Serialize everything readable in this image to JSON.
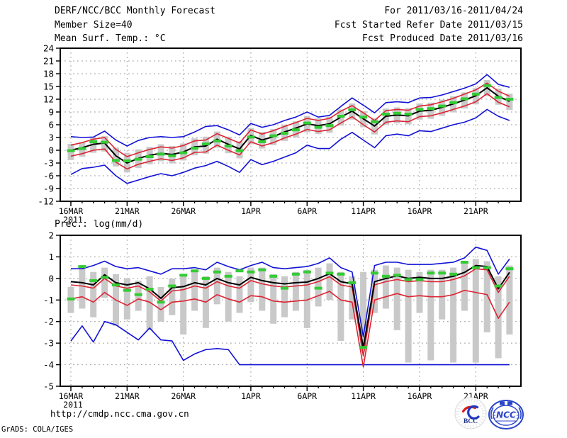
{
  "header": {
    "title": "DERF/NCC/BCC Monthly Forecast",
    "member_size": "Member Size=40",
    "for_range": "For 2011/03/16-2011/04/24",
    "fcst_started": "Fcst Started Refer Date 2011/03/15",
    "fcst_produced": "Fcst Produced Date 2011/03/16"
  },
  "footer": {
    "url": "http://cmdp.ncc.cma.gov.cn",
    "grads_credit": "GrADS: COLA/IGES",
    "logos": {
      "bcc": "BCC",
      "ncc": "NCC"
    }
  },
  "colors": {
    "background": "#ffffff",
    "frame": "#000000",
    "grid": "#999999",
    "ensemble_envelope": "#1212d6",
    "ensemble_quartile": "#dd2433",
    "ensemble_mean": "#000000",
    "observation_marker": "#33cc33",
    "spread_bar": "#c9c9c9"
  },
  "chart_data": [
    {
      "type": "line",
      "name": "temperature",
      "title": "Mean Surf. Temp.: °C",
      "ylim": [
        -12,
        24
      ],
      "yticks": [
        24,
        21,
        18,
        15,
        12,
        9,
        6,
        3,
        0,
        -3,
        -6,
        -9,
        -12
      ],
      "n_days": 40,
      "x_tick_days": [
        0,
        5,
        10,
        16,
        21,
        26,
        31,
        36
      ],
      "x_tick_labels": [
        "16MAR",
        "21MAR",
        "26MAR",
        "1APR",
        "6APR",
        "11APR",
        "16APR",
        "21APR"
      ],
      "x_year_label": "2011",
      "grid": true,
      "series": [
        {
          "name": "ensemble-max",
          "color": "#1212d6",
          "width": 1.6,
          "values": [
            3.2,
            3.0,
            3.1,
            4.5,
            2.4,
            1.0,
            2.3,
            3.0,
            3.2,
            3.0,
            3.2,
            4.3,
            5.6,
            5.8,
            4.8,
            3.6,
            6.3,
            5.4,
            6.0,
            7.0,
            7.8,
            9.0,
            7.8,
            8.2,
            10.3,
            12.3,
            10.6,
            8.8,
            11.2,
            11.4,
            11.2,
            12.3,
            12.4,
            13.0,
            13.8,
            14.6,
            15.6,
            17.8,
            15.5,
            14.8
          ]
        },
        {
          "name": "ensemble-min",
          "color": "#1212d6",
          "width": 1.6,
          "values": [
            -5.7,
            -4.3,
            -4.0,
            -3.5,
            -6.0,
            -7.8,
            -7.0,
            -6.2,
            -5.5,
            -6.0,
            -5.2,
            -4.2,
            -3.6,
            -2.6,
            -3.8,
            -5.2,
            -2.2,
            -3.4,
            -2.6,
            -1.6,
            -0.6,
            1.2,
            0.4,
            0.4,
            2.6,
            4.2,
            2.4,
            0.6,
            3.4,
            3.8,
            3.4,
            4.6,
            4.4,
            5.2,
            6.0,
            6.6,
            7.6,
            9.6,
            8.0,
            7.0
          ]
        },
        {
          "name": "upper-quartile",
          "color": "#dd2433",
          "width": 1.6,
          "values": [
            1.2,
            1.8,
            2.6,
            3.0,
            0.2,
            -1.5,
            -0.6,
            0.2,
            0.8,
            0.5,
            1.1,
            2.2,
            2.4,
            3.9,
            2.8,
            1.7,
            4.8,
            3.8,
            4.6,
            5.6,
            6.5,
            7.5,
            7.0,
            7.5,
            9.2,
            10.5,
            8.8,
            7.0,
            9.3,
            9.6,
            9.4,
            10.4,
            10.7,
            11.4,
            12.2,
            13.2,
            14.2,
            15.8,
            13.9,
            12.7
          ]
        },
        {
          "name": "lower-quartile",
          "color": "#dd2433",
          "width": 1.6,
          "values": [
            -1.4,
            -0.8,
            0.0,
            0.3,
            -2.8,
            -4.4,
            -3.3,
            -2.6,
            -2.0,
            -2.4,
            -1.8,
            -0.5,
            -0.4,
            1.2,
            0.0,
            -1.1,
            2.0,
            1.0,
            1.8,
            2.9,
            3.8,
            4.9,
            4.4,
            4.8,
            6.4,
            7.9,
            6.0,
            4.3,
            6.6,
            6.9,
            6.7,
            7.9,
            8.1,
            8.8,
            9.6,
            10.4,
            11.4,
            13.3,
            11.3,
            10.2
          ]
        },
        {
          "name": "ensemble-mean",
          "color": "#000000",
          "width": 2,
          "values": [
            0.0,
            0.6,
            1.4,
            1.7,
            -1.3,
            -3.0,
            -1.9,
            -1.2,
            -0.7,
            -1.0,
            -0.4,
            0.8,
            1.0,
            2.6,
            1.4,
            0.3,
            3.5,
            2.4,
            3.2,
            4.3,
            5.2,
            6.2,
            5.8,
            6.2,
            7.8,
            9.2,
            7.4,
            5.7,
            8.0,
            8.3,
            8.1,
            9.2,
            9.4,
            10.1,
            10.9,
            11.8,
            12.8,
            14.7,
            12.7,
            11.5
          ]
        }
      ],
      "markers": {
        "name": "observation",
        "color": "#33cc33",
        "values": [
          -0.1,
          0.4,
          2.0,
          1.9,
          -2.4,
          -2.5,
          -2.1,
          -1.5,
          -0.9,
          -1.3,
          -0.6,
          0.5,
          1.5,
          2.2,
          1.0,
          -0.1,
          3.1,
          2.0,
          3.4,
          4.0,
          4.8,
          6.4,
          5.4,
          5.8,
          8.0,
          9.5,
          7.8,
          6.7,
          8.5,
          8.7,
          8.5,
          9.6,
          9.8,
          10.4,
          11.2,
          12.1,
          13.2,
          15.2,
          12.4,
          12.0
        ]
      },
      "bars": {
        "name": "ensemble-spread",
        "color": "#c9c9c9",
        "high": [
          1.5,
          1.8,
          3.0,
          3.3,
          0.6,
          -0.6,
          0.2,
          0.8,
          1.4,
          1.0,
          1.6,
          2.8,
          3.2,
          4.4,
          3.2,
          2.1,
          5.2,
          4.3,
          5.0,
          6.0,
          6.8,
          8.0,
          7.5,
          7.9,
          9.6,
          11.0,
          9.2,
          7.5,
          9.8,
          10.1,
          9.9,
          11.0,
          11.2,
          11.9,
          12.7,
          13.6,
          14.6,
          16.5,
          14.5,
          13.3
        ],
        "low": [
          -2.3,
          -1.5,
          -0.6,
          -0.3,
          -3.8,
          -5.2,
          -4.2,
          -3.3,
          -2.6,
          -3.1,
          -2.4,
          -1.2,
          -0.8,
          0.6,
          -0.7,
          -1.9,
          1.4,
          0.4,
          1.2,
          2.2,
          3.0,
          4.2,
          3.8,
          4.1,
          5.8,
          7.2,
          5.4,
          3.7,
          6.0,
          6.3,
          6.1,
          7.2,
          7.4,
          8.1,
          8.9,
          9.8,
          10.8,
          12.7,
          10.7,
          9.5
        ]
      }
    },
    {
      "type": "line",
      "name": "precipitation",
      "title": "Prec.: log(mm/d)",
      "ylim": [
        -5,
        2
      ],
      "yticks": [
        2,
        1,
        0,
        -1,
        -2,
        -3,
        -4,
        -5
      ],
      "n_days": 40,
      "x_tick_days": [
        0,
        5,
        10,
        16,
        21,
        26,
        31,
        36
      ],
      "x_tick_labels": [
        "16MAR",
        "21MAR",
        "26MAR",
        "1APR",
        "6APR",
        "11APR",
        "16APR",
        "21APR"
      ],
      "x_year_label": "2011",
      "grid": true,
      "series": [
        {
          "name": "ensemble-max",
          "color": "#1212d6",
          "width": 1.6,
          "values": [
            0.45,
            0.45,
            0.6,
            0.8,
            0.55,
            0.45,
            0.5,
            0.35,
            0.2,
            0.45,
            0.45,
            0.5,
            0.4,
            0.75,
            0.55,
            0.4,
            0.6,
            0.75,
            0.5,
            0.45,
            0.5,
            0.55,
            0.7,
            0.95,
            0.5,
            0.3,
            -2.7,
            0.6,
            0.75,
            0.75,
            0.65,
            0.65,
            0.65,
            0.7,
            0.75,
            0.95,
            1.45,
            1.3,
            0.2,
            0.9
          ]
        },
        {
          "name": "ensemble-min",
          "color": "#1212d6",
          "width": 1.6,
          "values": [
            -2.9,
            -2.2,
            -2.95,
            -2.0,
            -2.15,
            -2.5,
            -2.85,
            -2.3,
            -2.85,
            -2.9,
            -3.8,
            -3.5,
            -3.3,
            -3.25,
            -3.3,
            -4.0,
            -4.0,
            -4.0,
            -4.0,
            -4.0,
            -4.0,
            -4.0,
            -4.0,
            -4.0,
            -4.0,
            -4.0,
            -4.0,
            -4.0,
            -4.0,
            -4.0,
            -4.0,
            -4.0,
            -4.0,
            -4.0,
            -4.0,
            -4.0,
            -4.0,
            -4.0,
            -4.0,
            -4.0
          ]
        },
        {
          "name": "upper-quartile",
          "color": "#dd2433",
          "width": 1.6,
          "values": [
            -0.3,
            -0.35,
            -0.45,
            0.0,
            -0.35,
            -0.45,
            -0.35,
            -0.62,
            -1.05,
            -0.58,
            -0.52,
            -0.35,
            -0.45,
            -0.15,
            -0.35,
            -0.45,
            -0.1,
            -0.25,
            -0.35,
            -0.4,
            -0.35,
            -0.3,
            -0.15,
            0.08,
            -0.3,
            -0.4,
            -3.6,
            -0.3,
            -0.15,
            -0.05,
            -0.15,
            -0.1,
            -0.15,
            -0.15,
            -0.05,
            0.12,
            0.45,
            0.4,
            -0.65,
            0.1
          ]
        },
        {
          "name": "lower-quartile",
          "color": "#dd2433",
          "width": 1.6,
          "values": [
            -0.95,
            -0.85,
            -1.1,
            -0.65,
            -1.0,
            -1.25,
            -0.95,
            -1.1,
            -1.45,
            -1.1,
            -1.05,
            -0.95,
            -1.1,
            -0.75,
            -0.95,
            -1.1,
            -0.8,
            -0.85,
            -1.05,
            -1.1,
            -1.05,
            -1.0,
            -0.8,
            -0.6,
            -1.0,
            -1.1,
            -4.1,
            -1.0,
            -0.85,
            -0.7,
            -0.85,
            -0.8,
            -0.85,
            -0.85,
            -0.75,
            -0.55,
            -0.65,
            -0.75,
            -1.85,
            -1.1
          ]
        },
        {
          "name": "ensemble-mean",
          "color": "#000000",
          "width": 2,
          "values": [
            -0.15,
            -0.2,
            -0.3,
            0.17,
            -0.2,
            -0.3,
            -0.2,
            -0.48,
            -0.92,
            -0.43,
            -0.38,
            -0.2,
            -0.3,
            0.0,
            -0.2,
            -0.3,
            0.05,
            -0.1,
            -0.2,
            -0.25,
            -0.2,
            -0.17,
            0.0,
            0.22,
            -0.15,
            -0.25,
            -3.22,
            -0.15,
            0.0,
            0.12,
            0.0,
            0.05,
            0.0,
            0.0,
            0.1,
            0.28,
            0.6,
            0.55,
            -0.48,
            0.28
          ]
        }
      ],
      "markers": {
        "name": "observation",
        "color": "#33cc33",
        "values": [
          -0.95,
          0.55,
          -0.1,
          0.05,
          -0.3,
          -0.55,
          -0.75,
          -0.5,
          -1.1,
          -0.35,
          0.15,
          0.35,
          0.0,
          0.3,
          0.1,
          0.35,
          0.3,
          0.4,
          0.1,
          -0.45,
          0.2,
          0.3,
          -0.45,
          0.25,
          0.2,
          -0.2,
          -3.2,
          0.25,
          0.1,
          0.15,
          -0.05,
          -0.05,
          0.25,
          0.25,
          0.2,
          0.75,
          0.5,
          0.5,
          -0.35,
          0.45
        ]
      },
      "bars": {
        "name": "ensemble-spread",
        "color": "#c9c9c9",
        "high": [
          -0.4,
          0.5,
          0.3,
          0.5,
          0.2,
          0.0,
          -0.1,
          0.1,
          -0.4,
          0.0,
          0.2,
          0.3,
          0.1,
          0.5,
          0.3,
          0.1,
          0.5,
          0.5,
          0.2,
          0.1,
          0.3,
          0.4,
          0.5,
          0.7,
          0.3,
          0.1,
          0.3,
          0.4,
          0.6,
          0.5,
          0.4,
          0.3,
          0.4,
          0.4,
          0.5,
          0.7,
          0.9,
          0.8,
          0.1,
          0.6
        ],
        "low": [
          -1.6,
          -1.4,
          -1.8,
          -0.9,
          -2.2,
          -1.9,
          -1.5,
          -2.4,
          -2.0,
          -1.7,
          -2.6,
          -1.5,
          -2.3,
          -1.2,
          -2.0,
          -1.6,
          -1.1,
          -1.5,
          -2.1,
          -1.8,
          -1.5,
          -2.3,
          -1.3,
          -1.0,
          -2.9,
          -1.9,
          -3.4,
          -1.6,
          -1.4,
          -2.4,
          -3.9,
          -1.6,
          -3.8,
          -1.9,
          -3.9,
          -1.5,
          -3.9,
          -2.5,
          -3.7,
          -2.6
        ]
      }
    }
  ]
}
